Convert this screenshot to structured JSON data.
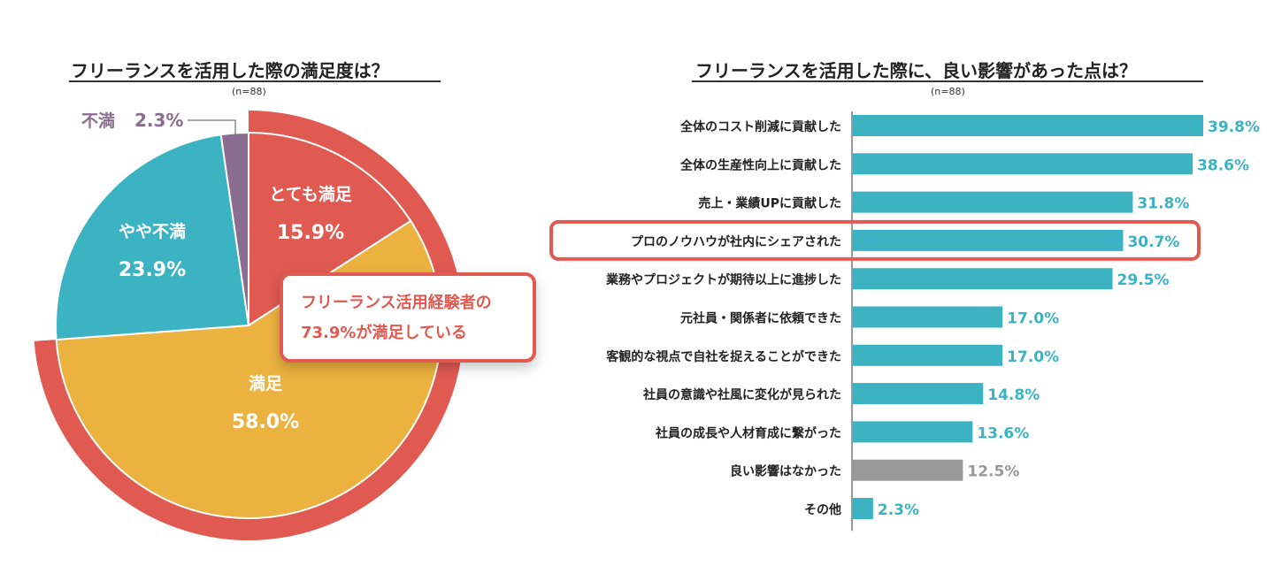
{
  "colors": {
    "red": "#e05a52",
    "yellow": "#ebb23f",
    "teal": "#3bb3c3",
    "purple": "#8a6d91",
    "gray": "#999999",
    "text": "#222222"
  },
  "pie": {
    "title": "フリーランスを活用した際の満足度は？",
    "sample": "(n=88)",
    "callout": {
      "line1": "フリーランス活用経験者の",
      "line2": "73.9%が満足している"
    }
  },
  "bars": {
    "title": "フリーランスを活用した際に、良い影響があった点は？",
    "sample": "(n=88)"
  },
  "chart_data": [
    {
      "type": "pie",
      "title": "フリーランスを活用した際の満足度は？",
      "sample_note": "(n=88)",
      "slices": [
        {
          "label": "とても満足",
          "value": 15.9,
          "display": "15.9%",
          "color": "#e05a52"
        },
        {
          "label": "満足",
          "value": 58.0,
          "display": "58.0%",
          "color": "#ebb23f"
        },
        {
          "label": "やや不満",
          "value": 23.9,
          "display": "23.9%",
          "color": "#3bb3c3"
        },
        {
          "label": "不満",
          "value": 2.3,
          "display": "2.3%",
          "color": "#8a6d91"
        }
      ],
      "highlight_annotation": "フリーランス活用経験者の73.9%が満足している"
    },
    {
      "type": "bar",
      "orientation": "horizontal",
      "title": "フリーランスを活用した際に、良い影響があった点は？",
      "sample_note": "(n=88)",
      "categories": [
        "全体のコスト削減に貢献した",
        "全体の生産性向上に貢献した",
        "売上・業績UPに貢献した",
        "プロのノウハウが社内にシェアされた",
        "業務やプロジェクトが期待以上に進捗した",
        "元社員・関係者に依頼できた",
        "客観的な視点で自社を捉えることができた",
        "社員の意識や社風に変化が見られた",
        "社員の成長や人材育成に繋がった",
        "良い影響はなかった",
        "その他"
      ],
      "values": [
        39.8,
        38.6,
        31.8,
        30.7,
        29.5,
        17.0,
        17.0,
        14.8,
        13.6,
        12.5,
        2.3
      ],
      "value_labels": [
        "39.8%",
        "38.6%",
        "31.8%",
        "30.7%",
        "29.5%",
        "17.0%",
        "17.0%",
        "14.8%",
        "13.6%",
        "12.5%",
        "2.3%"
      ],
      "bar_colors": [
        "#3bb3c3",
        "#3bb3c3",
        "#3bb3c3",
        "#3bb3c3",
        "#3bb3c3",
        "#3bb3c3",
        "#3bb3c3",
        "#3bb3c3",
        "#3bb3c3",
        "#999999",
        "#3bb3c3"
      ],
      "highlighted_category": "プロのノウハウが社内にシェアされた",
      "xlim": [
        0,
        40
      ]
    }
  ]
}
